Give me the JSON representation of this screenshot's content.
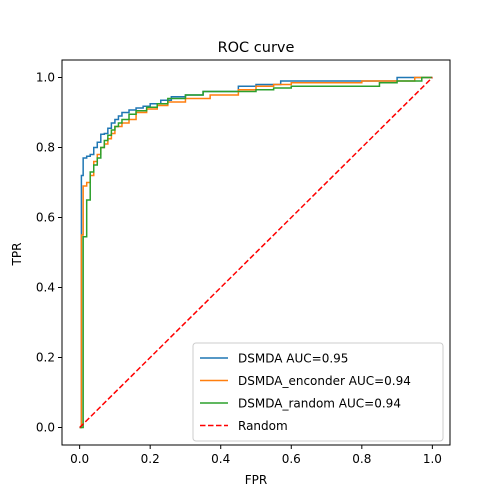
{
  "chart_data": {
    "type": "line",
    "title": "ROC curve",
    "xlabel": "FPR",
    "ylabel": "TPR",
    "xlim": [
      -0.05,
      1.05
    ],
    "ylim": [
      -0.05,
      1.05
    ],
    "xticks": [
      0.0,
      0.2,
      0.4,
      0.6,
      0.8,
      1.0
    ],
    "yticks": [
      0.0,
      0.2,
      0.4,
      0.6,
      0.8,
      1.0
    ],
    "xtick_labels": [
      "0.0",
      "0.2",
      "0.4",
      "0.6",
      "0.8",
      "1.0"
    ],
    "ytick_labels": [
      "0.0",
      "0.2",
      "0.4",
      "0.6",
      "0.8",
      "1.0"
    ],
    "grid": false,
    "legend_position": "lower-right",
    "series": [
      {
        "name": "DSMDA AUC=0.95",
        "color": "#1f77b4",
        "style": "solid",
        "x": [
          0.0,
          0.005,
          0.005,
          0.01,
          0.01,
          0.02,
          0.02,
          0.03,
          0.03,
          0.04,
          0.04,
          0.05,
          0.05,
          0.06,
          0.06,
          0.07,
          0.07,
          0.08,
          0.08,
          0.09,
          0.09,
          0.1,
          0.1,
          0.11,
          0.11,
          0.12,
          0.12,
          0.14,
          0.14,
          0.16,
          0.16,
          0.18,
          0.18,
          0.2,
          0.2,
          0.23,
          0.23,
          0.26,
          0.26,
          0.3,
          0.3,
          0.35,
          0.35,
          0.45,
          0.45,
          0.5,
          0.5,
          0.57,
          0.57,
          0.65,
          0.65,
          0.75,
          0.75,
          0.85,
          0.85,
          0.9,
          0.9,
          1.0
        ],
        "y": [
          0.0,
          0.0,
          0.72,
          0.72,
          0.77,
          0.77,
          0.775,
          0.775,
          0.78,
          0.78,
          0.8,
          0.8,
          0.815,
          0.815,
          0.838,
          0.838,
          0.84,
          0.84,
          0.855,
          0.855,
          0.87,
          0.87,
          0.88,
          0.88,
          0.89,
          0.89,
          0.9,
          0.9,
          0.907,
          0.907,
          0.913,
          0.913,
          0.918,
          0.918,
          0.925,
          0.925,
          0.935,
          0.935,
          0.945,
          0.945,
          0.95,
          0.95,
          0.96,
          0.96,
          0.975,
          0.975,
          0.98,
          0.98,
          0.99,
          0.99,
          0.99,
          0.99,
          0.99,
          0.99,
          0.99,
          0.99,
          1.0,
          1.0
        ]
      },
      {
        "name": "DSMDA_enconder AUC=0.94",
        "color": "#ff7f0e",
        "style": "solid",
        "x": [
          0.0,
          0.005,
          0.005,
          0.01,
          0.01,
          0.02,
          0.02,
          0.03,
          0.03,
          0.04,
          0.04,
          0.05,
          0.05,
          0.06,
          0.06,
          0.07,
          0.07,
          0.08,
          0.08,
          0.09,
          0.09,
          0.1,
          0.1,
          0.12,
          0.12,
          0.14,
          0.14,
          0.16,
          0.16,
          0.19,
          0.19,
          0.22,
          0.22,
          0.25,
          0.25,
          0.3,
          0.3,
          0.37,
          0.37,
          0.45,
          0.45,
          0.5,
          0.5,
          0.55,
          0.55,
          0.6,
          0.6,
          0.8,
          0.8,
          0.95,
          0.95,
          1.0
        ],
        "y": [
          0.0,
          0.0,
          0.55,
          0.55,
          0.69,
          0.69,
          0.7,
          0.7,
          0.72,
          0.72,
          0.76,
          0.76,
          0.78,
          0.78,
          0.8,
          0.8,
          0.81,
          0.81,
          0.825,
          0.825,
          0.84,
          0.84,
          0.86,
          0.86,
          0.87,
          0.87,
          0.88,
          0.88,
          0.9,
          0.9,
          0.91,
          0.91,
          0.92,
          0.92,
          0.93,
          0.93,
          0.94,
          0.94,
          0.95,
          0.95,
          0.965,
          0.965,
          0.975,
          0.975,
          0.98,
          0.98,
          0.985,
          0.985,
          0.99,
          0.99,
          1.0,
          1.0
        ]
      },
      {
        "name": "DSMDA_random AUC=0.94",
        "color": "#2ca02c",
        "style": "solid",
        "x": [
          0.0,
          0.01,
          0.01,
          0.02,
          0.02,
          0.03,
          0.03,
          0.04,
          0.04,
          0.05,
          0.05,
          0.06,
          0.06,
          0.07,
          0.07,
          0.08,
          0.08,
          0.09,
          0.09,
          0.1,
          0.1,
          0.11,
          0.11,
          0.12,
          0.12,
          0.14,
          0.14,
          0.16,
          0.16,
          0.19,
          0.19,
          0.22,
          0.22,
          0.25,
          0.25,
          0.3,
          0.3,
          0.35,
          0.35,
          0.5,
          0.5,
          0.55,
          0.55,
          0.6,
          0.6,
          0.85,
          0.85,
          0.9,
          0.9,
          0.97,
          0.97,
          1.0
        ],
        "y": [
          0.0,
          0.0,
          0.545,
          0.545,
          0.65,
          0.65,
          0.73,
          0.73,
          0.75,
          0.75,
          0.77,
          0.77,
          0.8,
          0.8,
          0.82,
          0.82,
          0.835,
          0.835,
          0.85,
          0.85,
          0.86,
          0.86,
          0.87,
          0.87,
          0.88,
          0.88,
          0.895,
          0.895,
          0.905,
          0.905,
          0.915,
          0.915,
          0.925,
          0.925,
          0.94,
          0.94,
          0.95,
          0.95,
          0.96,
          0.96,
          0.965,
          0.965,
          0.97,
          0.97,
          0.975,
          0.975,
          0.985,
          0.985,
          0.99,
          0.99,
          1.0,
          1.0
        ]
      },
      {
        "name": "Random",
        "color": "#ff0000",
        "style": "dashed",
        "x": [
          0.0,
          1.0
        ],
        "y": [
          0.0,
          1.0
        ]
      }
    ]
  }
}
